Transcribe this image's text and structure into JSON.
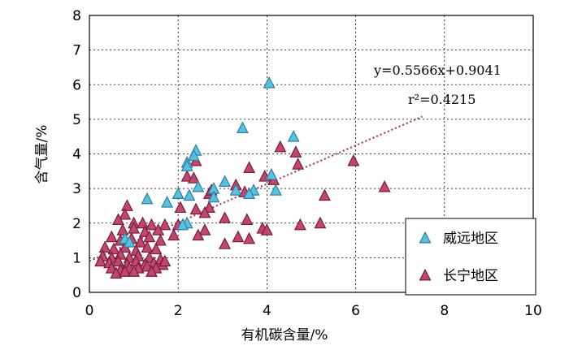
{
  "chart_data": {
    "type": "scatter",
    "xlabel": "有机碳含量/%",
    "ylabel": "含气量/%",
    "xlim": [
      0,
      10
    ],
    "ylim": [
      0,
      8
    ],
    "xticks": [
      "0",
      "2",
      "4",
      "6",
      "8",
      "10"
    ],
    "yticks": [
      "0",
      "1",
      "2",
      "3",
      "4",
      "5",
      "6",
      "7",
      "8"
    ],
    "grid": true,
    "legend_position": "bottom-right",
    "equation": "y=0.5566x+0.9041",
    "r2": "r²=0.4215",
    "trendline": {
      "slope": 0.5566,
      "intercept": 0.9041,
      "x_range": [
        0,
        7.5
      ],
      "color": "#9b2d57"
    },
    "series": [
      {
        "name": "威远地区",
        "color": "#5bc0de",
        "stroke": "#2f7fa6",
        "points": [
          [
            4.05,
            6.05
          ],
          [
            3.45,
            4.75
          ],
          [
            4.6,
            4.5
          ],
          [
            2.4,
            4.1
          ],
          [
            2.35,
            3.95
          ],
          [
            2.2,
            3.75
          ],
          [
            2.2,
            3.65
          ],
          [
            4.1,
            3.4
          ],
          [
            3.05,
            3.2
          ],
          [
            2.45,
            3.05
          ],
          [
            2.8,
            3.0
          ],
          [
            1.3,
            2.7
          ],
          [
            1.75,
            2.6
          ],
          [
            2.0,
            2.85
          ],
          [
            2.25,
            2.8
          ],
          [
            3.7,
            2.95
          ],
          [
            3.6,
            2.85
          ],
          [
            4.2,
            2.95
          ],
          [
            2.8,
            2.75
          ],
          [
            2.2,
            2.0
          ],
          [
            2.1,
            1.95
          ],
          [
            3.3,
            2.95
          ],
          [
            0.8,
            1.55
          ],
          [
            0.9,
            1.45
          ]
        ]
      },
      {
        "name": "长宁地区",
        "color": "#c0476e",
        "stroke": "#7a1c3c",
        "points": [
          [
            4.3,
            4.2
          ],
          [
            4.65,
            4.05
          ],
          [
            4.7,
            3.7
          ],
          [
            3.6,
            3.6
          ],
          [
            2.4,
            3.8
          ],
          [
            2.2,
            3.35
          ],
          [
            2.35,
            3.3
          ],
          [
            3.95,
            3.35
          ],
          [
            4.15,
            3.25
          ],
          [
            3.3,
            3.1
          ],
          [
            3.5,
            2.9
          ],
          [
            2.7,
            2.85
          ],
          [
            2.75,
            2.95
          ],
          [
            5.95,
            3.8
          ],
          [
            6.65,
            3.05
          ],
          [
            5.3,
            2.8
          ],
          [
            0.85,
            2.5
          ],
          [
            2.05,
            2.45
          ],
          [
            2.7,
            2.45
          ],
          [
            2.4,
            2.4
          ],
          [
            2.6,
            2.3
          ],
          [
            3.05,
            2.15
          ],
          [
            3.55,
            2.1
          ],
          [
            0.8,
            2.25
          ],
          [
            0.65,
            2.1
          ],
          [
            1.0,
            2.0
          ],
          [
            1.2,
            2.0
          ],
          [
            1.4,
            1.95
          ],
          [
            1.7,
            1.95
          ],
          [
            2.0,
            1.95
          ],
          [
            0.75,
            1.8
          ],
          [
            1.0,
            1.85
          ],
          [
            1.25,
            1.75
          ],
          [
            1.55,
            1.8
          ],
          [
            2.6,
            1.8
          ],
          [
            1.9,
            1.65
          ],
          [
            2.45,
            1.65
          ],
          [
            3.35,
            1.6
          ],
          [
            3.6,
            1.55
          ],
          [
            3.05,
            1.4
          ],
          [
            3.9,
            1.85
          ],
          [
            4.0,
            1.8
          ],
          [
            4.75,
            1.95
          ],
          [
            5.2,
            2.0
          ],
          [
            0.5,
            1.6
          ],
          [
            0.7,
            1.5
          ],
          [
            0.95,
            1.55
          ],
          [
            1.15,
            1.45
          ],
          [
            1.35,
            1.6
          ],
          [
            1.6,
            1.5
          ],
          [
            0.35,
            1.3
          ],
          [
            0.55,
            1.25
          ],
          [
            0.8,
            1.3
          ],
          [
            1.05,
            1.2
          ],
          [
            1.3,
            1.3
          ],
          [
            1.5,
            1.25
          ],
          [
            0.3,
            1.05
          ],
          [
            0.5,
            1.0
          ],
          [
            0.7,
            1.1
          ],
          [
            0.9,
            1.0
          ],
          [
            1.1,
            1.05
          ],
          [
            1.35,
            1.0
          ],
          [
            1.6,
            0.95
          ],
          [
            0.25,
            0.9
          ],
          [
            0.45,
            0.85
          ],
          [
            0.65,
            0.9
          ],
          [
            0.85,
            0.8
          ],
          [
            1.05,
            0.9
          ],
          [
            1.25,
            0.8
          ],
          [
            1.45,
            0.85
          ],
          [
            1.65,
            0.8
          ],
          [
            0.5,
            0.7
          ],
          [
            0.7,
            0.65
          ],
          [
            0.9,
            0.7
          ],
          [
            1.1,
            0.7
          ],
          [
            1.3,
            0.75
          ],
          [
            1.5,
            0.7
          ],
          [
            0.6,
            0.55
          ],
          [
            0.8,
            0.6
          ],
          [
            1.0,
            0.6
          ],
          [
            1.7,
            0.9
          ],
          [
            1.4,
            0.6
          ]
        ]
      }
    ]
  }
}
